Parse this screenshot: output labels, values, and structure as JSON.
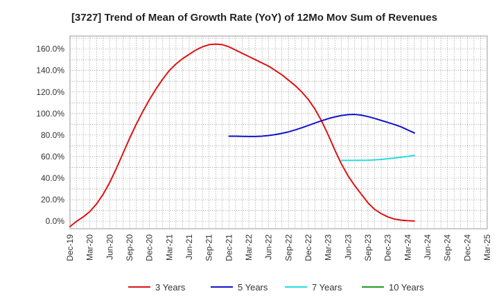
{
  "chart_data": {
    "type": "line",
    "title": "[3727]  Trend of Mean of Growth Rate (YoY) of 12Mo Mov Sum of Revenues",
    "xlabel": "",
    "ylabel": "",
    "x_ticks": [
      "Dec-19",
      "Mar-20",
      "Jun-20",
      "Sep-20",
      "Dec-20",
      "Mar-21",
      "Jun-21",
      "Sep-21",
      "Dec-21",
      "Mar-22",
      "Jun-22",
      "Sep-22",
      "Dec-22",
      "Mar-23",
      "Jun-23",
      "Sep-23",
      "Dec-23",
      "Mar-24",
      "Jun-24",
      "Sep-24",
      "Dec-24",
      "Mar-25"
    ],
    "y_ticks": [
      "0.0%",
      "20.0%",
      "40.0%",
      "60.0%",
      "80.0%",
      "100.0%",
      "120.0%",
      "140.0%",
      "160.0%"
    ],
    "y_tick_values": [
      0,
      20,
      40,
      60,
      80,
      100,
      120,
      140,
      160
    ],
    "xlim": [
      0,
      63
    ],
    "ylim": [
      -7,
      172
    ],
    "grid": true,
    "legend_position": "bottom",
    "series": [
      {
        "name": "3 Years",
        "color": "#dd1111",
        "points": [
          [
            0,
            -5
          ],
          [
            1,
            0
          ],
          [
            2,
            4
          ],
          [
            3,
            9
          ],
          [
            4,
            16
          ],
          [
            5,
            25
          ],
          [
            6,
            36
          ],
          [
            7,
            49
          ],
          [
            8,
            63
          ],
          [
            9,
            77
          ],
          [
            10,
            90
          ],
          [
            11,
            102
          ],
          [
            12,
            113
          ],
          [
            13,
            123
          ],
          [
            14,
            132
          ],
          [
            15,
            140
          ],
          [
            16,
            146
          ],
          [
            17,
            151
          ],
          [
            18,
            155
          ],
          [
            19,
            159
          ],
          [
            20,
            162
          ],
          [
            21,
            164
          ],
          [
            22,
            164.5
          ],
          [
            23,
            164
          ],
          [
            24,
            162
          ],
          [
            25,
            159
          ],
          [
            26,
            156
          ],
          [
            27,
            153
          ],
          [
            28,
            150
          ],
          [
            29,
            147
          ],
          [
            30,
            144
          ],
          [
            31,
            140
          ],
          [
            32,
            136
          ],
          [
            33,
            131
          ],
          [
            34,
            126
          ],
          [
            35,
            120
          ],
          [
            36,
            113
          ],
          [
            37,
            104
          ],
          [
            38,
            93
          ],
          [
            39,
            80
          ],
          [
            40,
            66
          ],
          [
            41,
            53
          ],
          [
            42,
            42
          ],
          [
            43,
            33
          ],
          [
            44,
            25
          ],
          [
            45,
            17
          ],
          [
            46,
            11
          ],
          [
            47,
            7
          ],
          [
            48,
            4
          ],
          [
            49,
            2
          ],
          [
            50,
            1
          ],
          [
            51,
            0.5
          ],
          [
            52,
            0.2
          ]
        ]
      },
      {
        "name": "5 Years",
        "color": "#1111cc",
        "points": [
          [
            24,
            79
          ],
          [
            25,
            79
          ],
          [
            26,
            78.8
          ],
          [
            27,
            78.7
          ],
          [
            28,
            78.7
          ],
          [
            29,
            79
          ],
          [
            30,
            79.6
          ],
          [
            31,
            80.5
          ],
          [
            32,
            81.6
          ],
          [
            33,
            83
          ],
          [
            34,
            84.8
          ],
          [
            35,
            86.8
          ],
          [
            36,
            89
          ],
          [
            37,
            91.2
          ],
          [
            38,
            93.3
          ],
          [
            39,
            95.3
          ],
          [
            40,
            96.9
          ],
          [
            41,
            98.2
          ],
          [
            42,
            99
          ],
          [
            43,
            99.2
          ],
          [
            44,
            98.5
          ],
          [
            45,
            97.2
          ],
          [
            46,
            95.5
          ],
          [
            47,
            93.6
          ],
          [
            48,
            91.7
          ],
          [
            49,
            89.8
          ],
          [
            50,
            87.6
          ],
          [
            51,
            84.8
          ],
          [
            52,
            82
          ]
        ]
      },
      {
        "name": "7 Years",
        "color": "#22dddd",
        "points": [
          [
            41,
            56.5
          ],
          [
            42,
            56.5
          ],
          [
            43,
            56.5
          ],
          [
            44,
            56.6
          ],
          [
            45,
            56.7
          ],
          [
            46,
            57
          ],
          [
            47,
            57.4
          ],
          [
            48,
            58
          ],
          [
            49,
            58.7
          ],
          [
            50,
            59.5
          ],
          [
            51,
            60.2
          ],
          [
            52,
            61
          ]
        ]
      },
      {
        "name": "10 Years",
        "color": "#229922",
        "points": []
      }
    ]
  }
}
